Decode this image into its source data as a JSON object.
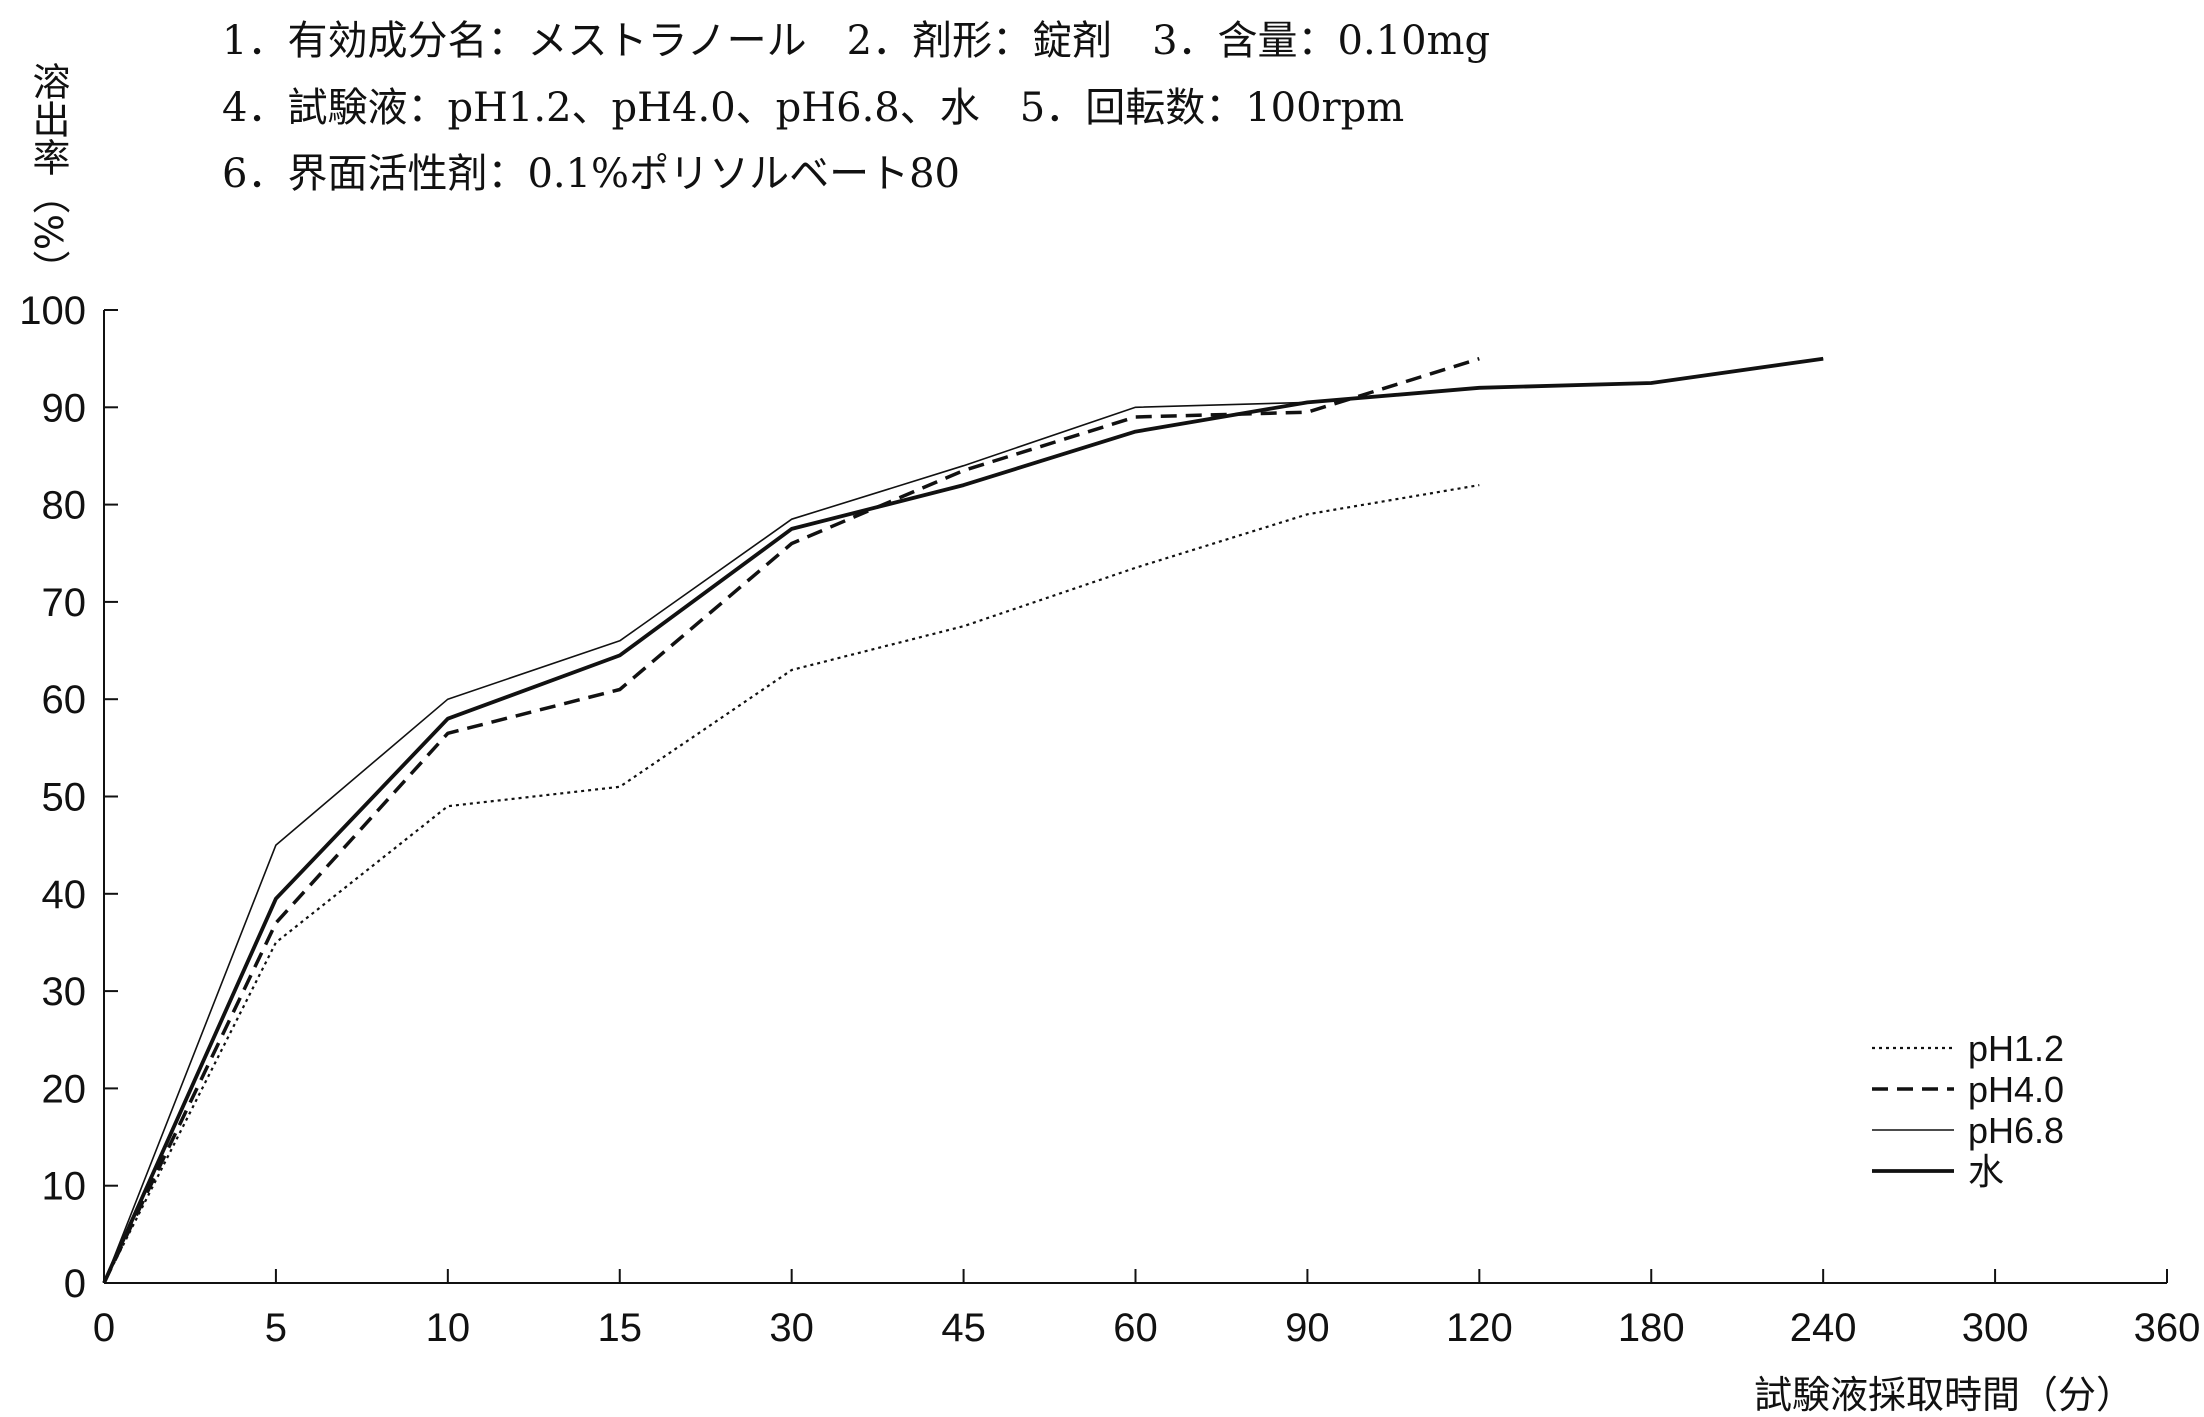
{
  "conditions": [
    "1．有効成分名：メストラノール　2．剤形：錠剤　3．含量：0.10mg",
    "4．試験液：pH1.2、pH4.0、pH6.8、水　5．回転数：100rpm",
    "6．界面活性剤：0.1%ポリソルベート80"
  ],
  "chart_data": {
    "type": "line",
    "title": "",
    "xlabel": "試験液採取時間（分）",
    "ylabel": "溶出率（%）",
    "categories": [
      "0",
      "5",
      "10",
      "15",
      "30",
      "45",
      "60",
      "90",
      "120",
      "180",
      "240",
      "300",
      "360"
    ],
    "y_ticks": [
      "0",
      "10",
      "20",
      "30",
      "40",
      "50",
      "60",
      "70",
      "80",
      "90",
      "100"
    ],
    "ylim": [
      0,
      100
    ],
    "grid": false,
    "legend_position": "bottom-right",
    "series": [
      {
        "name": "pH1.2",
        "style": "dotted",
        "values": [
          0,
          35,
          49,
          51,
          63,
          67.5,
          73.5,
          79,
          82,
          null,
          null,
          null,
          null
        ]
      },
      {
        "name": "pH4.0",
        "style": "dashed",
        "values": [
          0,
          37,
          56.5,
          61,
          76,
          83.5,
          89,
          89.5,
          95,
          null,
          null,
          null,
          null
        ]
      },
      {
        "name": "pH6.8",
        "style": "thin",
        "values": [
          0,
          45,
          60,
          66,
          78.5,
          84,
          90,
          90.5,
          92,
          92.5,
          95,
          null,
          null
        ]
      },
      {
        "name": "水",
        "style": "solid",
        "values": [
          0,
          39.5,
          58,
          64.5,
          77.5,
          82,
          87.5,
          90.5,
          92,
          92.5,
          95,
          null,
          null
        ]
      }
    ]
  }
}
